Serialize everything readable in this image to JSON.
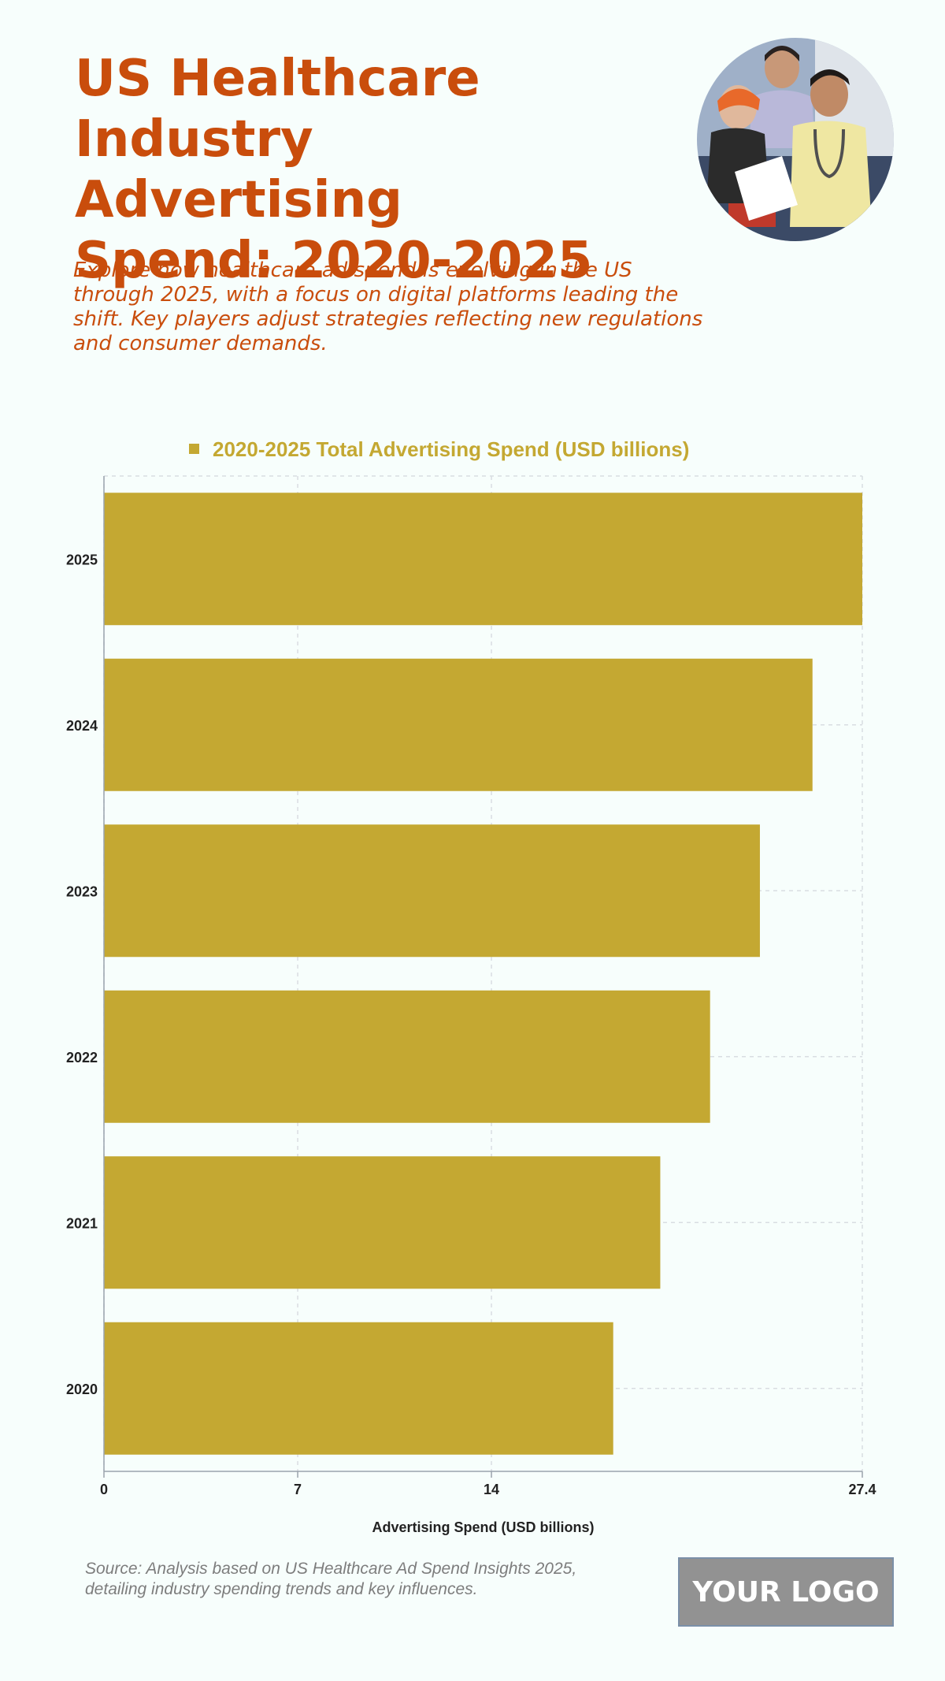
{
  "header": {
    "title_lines": [
      "US Healthcare Industry",
      "Advertising",
      "Spend: 2020-2025"
    ],
    "subtitle": "Explore how healthcare ad spend is evolving in the US through 2025, with a focus on digital platforms leading the shift. Key players adjust strategies reflecting new regulations and consumer demands."
  },
  "chart_data": {
    "type": "bar",
    "orientation": "horizontal",
    "categories": [
      "2025",
      "2024",
      "2023",
      "2022",
      "2021",
      "2020"
    ],
    "series": [
      {
        "name": "2020-2025 Total Advertising Spend (USD billions)",
        "values": [
          27.4,
          25.6,
          23.7,
          21.9,
          20.1,
          18.4
        ]
      }
    ],
    "xlabel": "Advertising Spend (USD billions)",
    "ylabel": "",
    "xlim": [
      0,
      27.4
    ],
    "xticks": [
      0,
      7,
      14,
      27.4
    ],
    "xtick_labels": [
      "0",
      "7",
      "14",
      "27.4"
    ],
    "grid": true,
    "legend_position": "top-center",
    "bar_color": "#c4a832"
  },
  "footer": {
    "source": "Source: Analysis based on US Healthcare Ad Spend Insights 2025, detailing industry spending trends and key influences.",
    "logo_text": "YOUR LOGO"
  },
  "colors": {
    "title": "#c94d0c",
    "bar": "#c4a832",
    "background": "#f7fefc"
  }
}
